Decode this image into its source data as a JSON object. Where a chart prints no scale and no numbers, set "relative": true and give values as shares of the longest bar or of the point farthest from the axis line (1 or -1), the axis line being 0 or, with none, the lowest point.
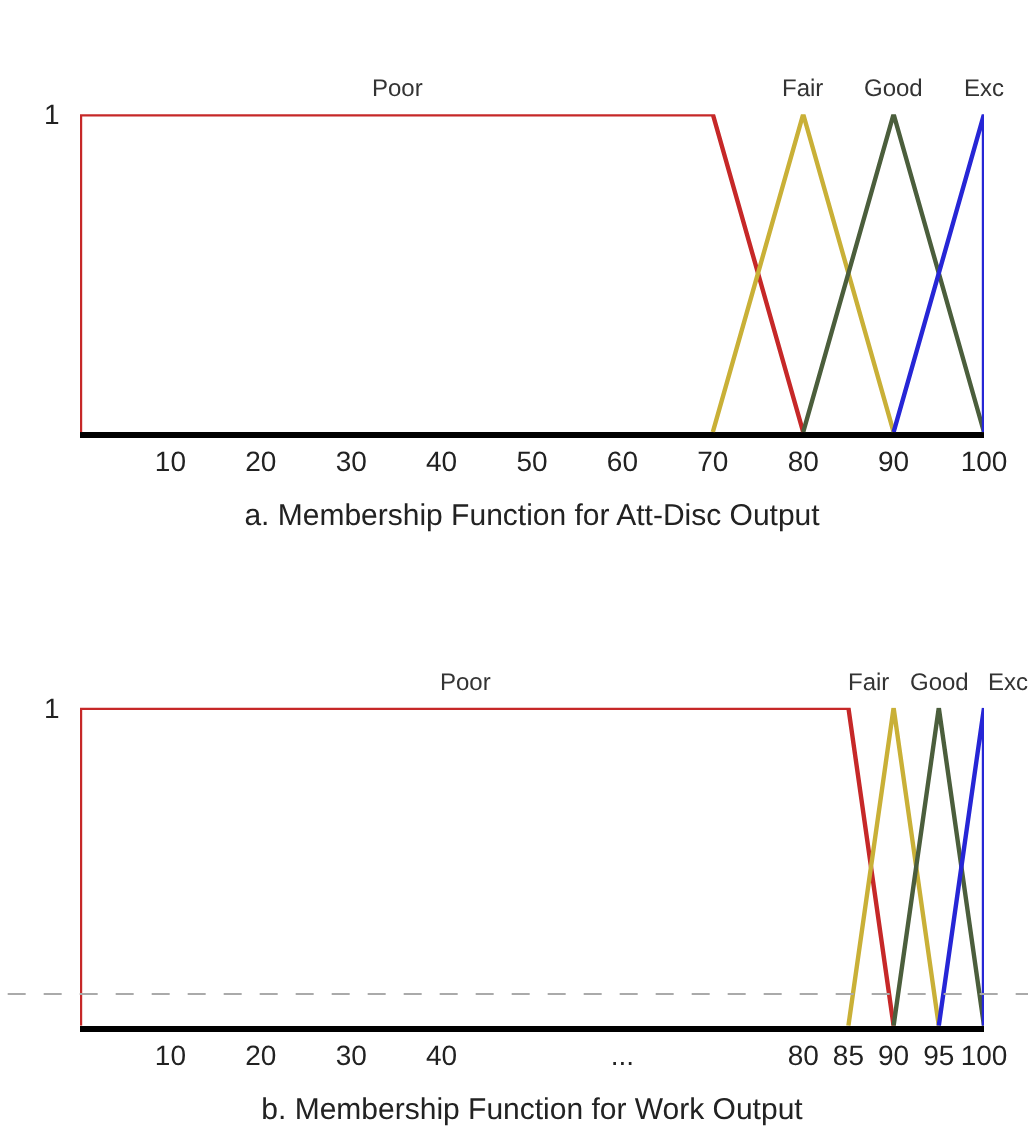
{
  "chart_data": [
    {
      "type": "line",
      "xlabel": "a. Membership Function for Att-Disc Output",
      "xlim": [
        0,
        100
      ],
      "xticks": [
        10,
        20,
        30,
        40,
        50,
        60,
        70,
        80,
        90,
        100
      ],
      "relative": true,
      "annotations": [
        "1"
      ],
      "legend": false,
      "marker": "none",
      "line_style": "solid",
      "series": [
        {
          "name": "Poor",
          "color": "#c62828",
          "x": [
            0,
            0,
            70,
            80
          ],
          "values": [
            0,
            1,
            1,
            0
          ]
        },
        {
          "name": "Fair",
          "color": "#c9b037",
          "x": [
            70,
            80,
            90
          ],
          "values": [
            0,
            1,
            0
          ]
        },
        {
          "name": "Good",
          "color": "#4b5e3c",
          "x": [
            80,
            90,
            100
          ],
          "values": [
            0,
            1,
            0
          ]
        },
        {
          "name": "Exc",
          "color": "#2626d6",
          "x": [
            90,
            100,
            100
          ],
          "values": [
            0,
            1,
            0
          ]
        }
      ]
    },
    {
      "type": "line",
      "xlabel": "b. Membership Function for Work Output",
      "xlim": [
        0,
        100
      ],
      "xticks": [
        10,
        20,
        30,
        40,
        {
          "value": 60,
          "label": "..."
        },
        80,
        85,
        90,
        95,
        100
      ],
      "relative": true,
      "annotations": [
        "1"
      ],
      "legend": false,
      "marker": "none",
      "line_style": "solid",
      "ref_lines": [
        {
          "axis": "y",
          "value": 0.1,
          "color": "#aaaaaa",
          "line_style": "dashed"
        }
      ],
      "series": [
        {
          "name": "Poor",
          "color": "#c62828",
          "x": [
            0,
            0,
            85,
            90
          ],
          "values": [
            0,
            1,
            1,
            0
          ]
        },
        {
          "name": "Fair",
          "color": "#c9b037",
          "x": [
            85,
            90,
            95
          ],
          "values": [
            0,
            1,
            0
          ]
        },
        {
          "name": "Good",
          "color": "#4b5e3c",
          "x": [
            90,
            95,
            100
          ],
          "values": [
            0,
            1,
            0
          ]
        },
        {
          "name": "Exc",
          "color": "#2626d6",
          "x": [
            95,
            100,
            100
          ],
          "values": [
            0,
            1,
            0
          ]
        }
      ]
    }
  ]
}
